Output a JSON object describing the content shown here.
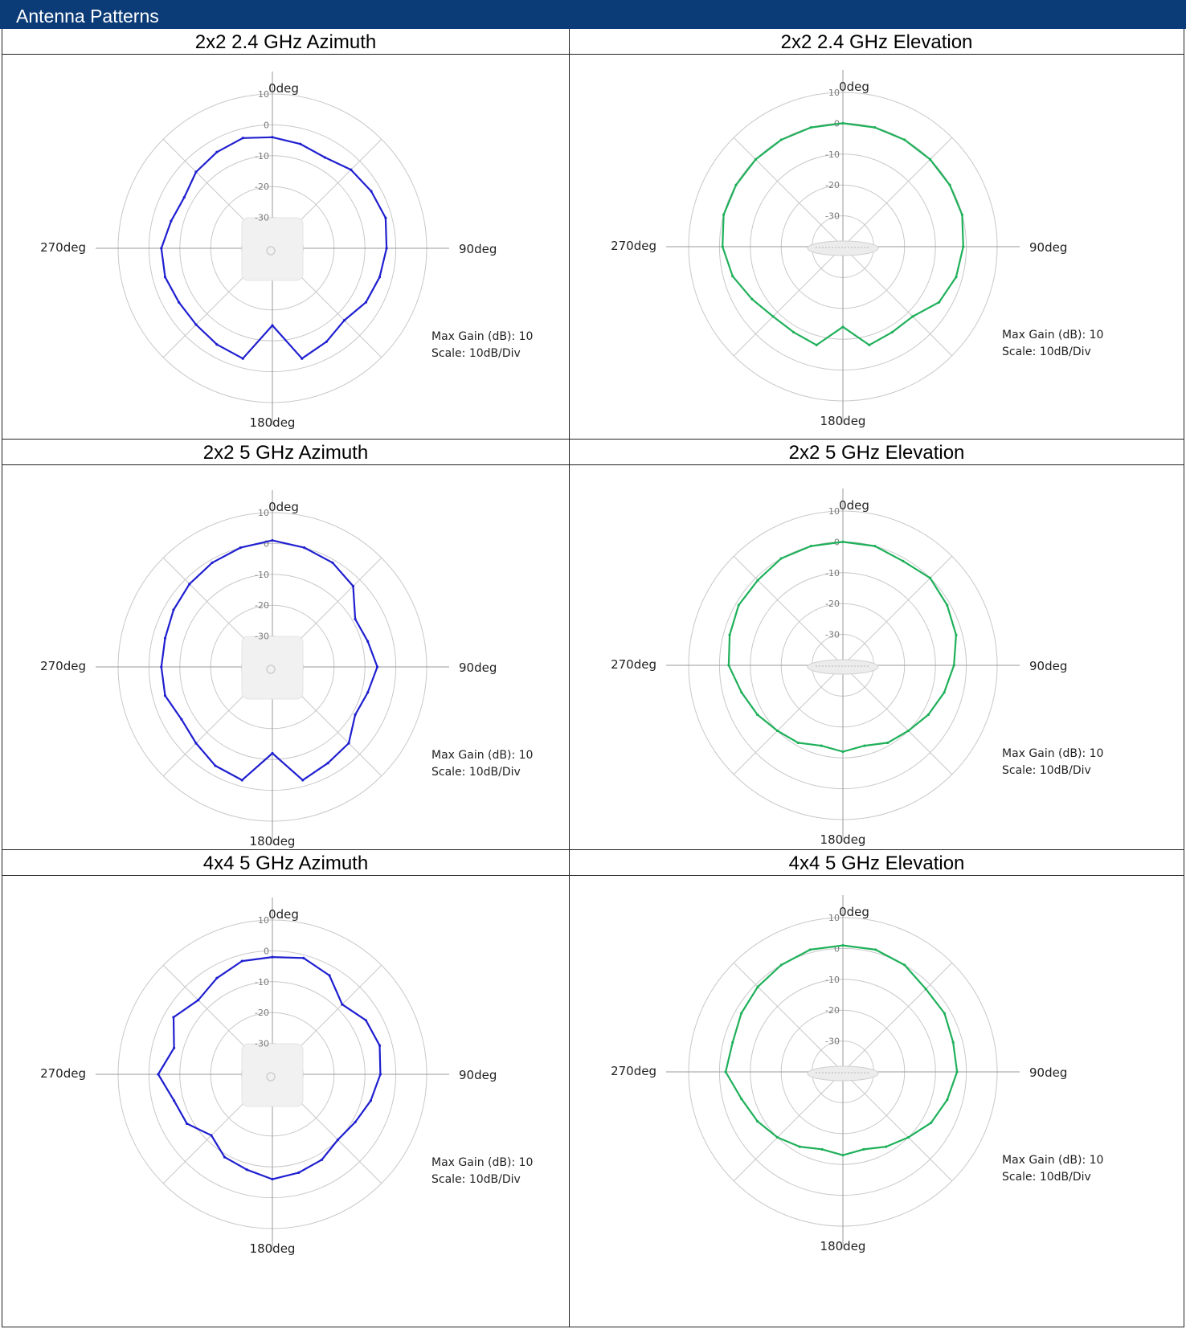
{
  "header": {
    "title": "Antenna Patterns"
  },
  "colors": {
    "banner": "#0c3c78",
    "azimuth_trace": "#1f1fd0",
    "elevation_trace": "#1fb05a",
    "grid": "#c8c8c8"
  },
  "chart_data": [
    {
      "type": "polar-line",
      "title": "2x2 2.4 GHz Azimuth",
      "angle_labels": [
        "0deg",
        "90deg",
        "180deg",
        "270deg"
      ],
      "radial_ticks": [
        "10",
        "0",
        "-10",
        "-20",
        "-30"
      ],
      "radial_range_db": [
        -40,
        10
      ],
      "angle_step_deg": 15,
      "note_lines": [
        "Max Gain (dB): 10",
        "Scale: 10dB/Div"
      ],
      "device_icon": "ap-top-view-icon",
      "series": [
        {
          "color": "#1f1fd0",
          "angles_deg": [
            0,
            15,
            30,
            45,
            60,
            75,
            90,
            105,
            120,
            135,
            150,
            165,
            180,
            195,
            210,
            225,
            240,
            255,
            270,
            285,
            300,
            315,
            330,
            345
          ],
          "gain_db": [
            -4,
            -5,
            -6,
            -4,
            -3,
            -2,
            -3,
            -4,
            -5,
            -7,
            -5,
            -3,
            -15,
            -3,
            -4,
            -5,
            -5,
            -4,
            -4,
            -6,
            -7,
            -5,
            -4,
            -3
          ]
        }
      ]
    },
    {
      "type": "polar-line",
      "title": "2x2 2.4 GHz Elevation",
      "angle_labels": [
        "0deg",
        "90deg",
        "180deg",
        "270deg"
      ],
      "radial_ticks": [
        "10",
        "0",
        "-10",
        "-20",
        "-30"
      ],
      "radial_range_db": [
        -40,
        10
      ],
      "angle_step_deg": 15,
      "note_lines": [
        "Max Gain (dB): 10",
        "Scale: 10dB/Div"
      ],
      "device_icon": "ap-side-view-icon",
      "series": [
        {
          "color": "#1fb05a",
          "angles_deg": [
            0,
            15,
            30,
            45,
            60,
            75,
            90,
            105,
            120,
            135,
            150,
            165,
            180,
            195,
            210,
            225,
            240,
            255,
            270,
            285,
            300,
            315,
            330,
            345
          ],
          "gain_db": [
            0,
            0,
            0,
            0,
            0,
            0,
            -1,
            -2,
            -4,
            -8,
            -8,
            -7,
            -14,
            -7,
            -8,
            -8,
            -6,
            -3,
            -1,
            0,
            0,
            0,
            0,
            0
          ]
        }
      ]
    },
    {
      "type": "polar-line",
      "title": "2x2 5 GHz Azimuth",
      "angle_labels": [
        "0deg",
        "90deg",
        "180deg",
        "270deg"
      ],
      "radial_ticks": [
        "10",
        "0",
        "-10",
        "-20",
        "-30"
      ],
      "radial_range_db": [
        -40,
        10
      ],
      "angle_step_deg": 15,
      "note_lines": [
        "Max Gain (dB): 10",
        "Scale: 10dB/Div"
      ],
      "device_icon": "ap-top-view-icon",
      "series": [
        {
          "color": "#1f1fd0",
          "angles_deg": [
            0,
            15,
            30,
            45,
            60,
            75,
            90,
            105,
            120,
            135,
            150,
            165,
            180,
            195,
            210,
            225,
            240,
            255,
            270,
            285,
            300,
            315,
            330,
            345
          ],
          "gain_db": [
            1,
            0,
            -1,
            -3,
            -9,
            -8,
            -6,
            -8,
            -9,
            -5,
            -4,
            -2,
            -12,
            -2,
            -3,
            -5,
            -6,
            -4,
            -4,
            -4,
            -3,
            -2,
            -1,
            0
          ]
        }
      ]
    },
    {
      "type": "polar-line",
      "title": "2x2 5 GHz Elevation",
      "angle_labels": [
        "0deg",
        "90deg",
        "180deg",
        "270deg"
      ],
      "radial_ticks": [
        "10",
        "0",
        "-10",
        "-20",
        "-30"
      ],
      "radial_range_db": [
        -40,
        10
      ],
      "angle_step_deg": 15,
      "note_lines": [
        "Max Gain (dB): 10",
        "Scale: 10dB/Div"
      ],
      "device_icon": "ap-side-view-icon",
      "series": [
        {
          "color": "#1fb05a",
          "angles_deg": [
            0,
            15,
            30,
            45,
            60,
            75,
            90,
            105,
            120,
            135,
            150,
            165,
            180,
            195,
            210,
            225,
            240,
            255,
            270,
            285,
            300,
            315,
            330,
            345
          ],
          "gain_db": [
            0,
            0,
            -1,
            0,
            -1,
            -2,
            -4,
            -6,
            -8,
            -10,
            -11,
            -13,
            -12,
            -13,
            -11,
            -10,
            -8,
            -6,
            -3,
            -2,
            -1,
            -1,
            0,
            0
          ]
        }
      ]
    },
    {
      "type": "polar-line",
      "title": "4x4 5 GHz Azimuth",
      "angle_labels": [
        "0deg",
        "90deg",
        "180deg",
        "270deg"
      ],
      "radial_ticks": [
        "10",
        "0",
        "-10",
        "-20",
        "-30"
      ],
      "radial_range_db": [
        -40,
        10
      ],
      "angle_step_deg": 15,
      "note_lines": [
        "Max Gain (dB): 10",
        "Scale: 10dB/Div"
      ],
      "device_icon": "ap-top-view-icon",
      "series": [
        {
          "color": "#1f1fd0",
          "angles_deg": [
            0,
            15,
            30,
            45,
            60,
            75,
            90,
            105,
            120,
            135,
            150,
            165,
            180,
            195,
            210,
            225,
            240,
            255,
            270,
            285,
            300,
            315,
            330,
            345
          ],
          "gain_db": [
            -2,
            -1,
            -3,
            -8,
            -5,
            -4,
            -5,
            -7,
            -9,
            -10,
            -8,
            -7,
            -6,
            -8,
            -9,
            -12,
            -8,
            -7,
            -3,
            -7,
            -3,
            -6,
            -4,
            -2
          ]
        }
      ]
    },
    {
      "type": "polar-line",
      "title": "4x4 5 GHz Elevation",
      "angle_labels": [
        "0deg",
        "90deg",
        "180deg",
        "270deg"
      ],
      "radial_ticks": [
        "10",
        "0",
        "-10",
        "-20",
        "-30"
      ],
      "radial_range_db": [
        -40,
        10
      ],
      "angle_step_deg": 15,
      "note_lines": [
        "Max Gain (dB): 10",
        "Scale: 10dB/Div"
      ],
      "device_icon": "ap-side-view-icon",
      "series": [
        {
          "color": "#1fb05a",
          "angles_deg": [
            0,
            15,
            30,
            45,
            60,
            75,
            90,
            105,
            120,
            135,
            150,
            165,
            180,
            195,
            210,
            225,
            240,
            255,
            270,
            285,
            300,
            315,
            330,
            345
          ],
          "gain_db": [
            1,
            1,
            0,
            -2,
            -2,
            -3,
            -3,
            -5,
            -7,
            -10,
            -12,
            -14,
            -13,
            -14,
            -12,
            -10,
            -8,
            -6,
            -2,
            -3,
            -2,
            -1,
            0,
            1
          ]
        }
      ]
    }
  ]
}
